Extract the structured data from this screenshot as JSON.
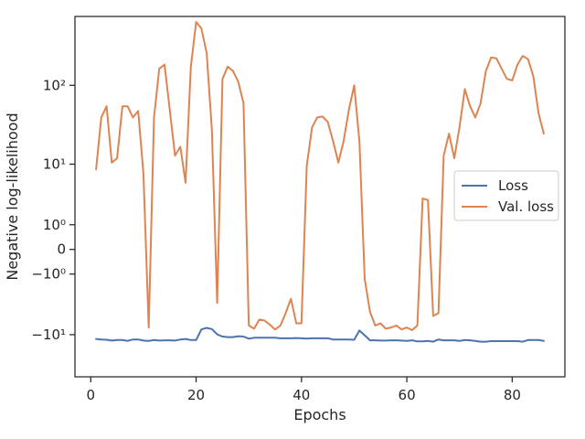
{
  "chart_data": {
    "type": "line",
    "xlabel": "Epochs",
    "ylabel": "Negative log-likelihood",
    "yscale": "symlog",
    "xlim": [
      -3,
      90
    ],
    "ylim": [
      -35,
      700
    ],
    "x_ticks": [
      0,
      20,
      40,
      60,
      80
    ],
    "x_tick_labels": [
      "0",
      "20",
      "40",
      "60",
      "80"
    ],
    "y_ticks": [
      -10,
      -1,
      0,
      1,
      10,
      100
    ],
    "y_tick_labels": [
      "−10¹",
      "−10⁰",
      "0",
      "10⁰",
      "10¹",
      "10²"
    ],
    "grid": false,
    "legend_position": "center-right",
    "x": [
      1,
      2,
      3,
      4,
      5,
      6,
      7,
      8,
      9,
      10,
      11,
      12,
      13,
      14,
      15,
      16,
      17,
      18,
      19,
      20,
      21,
      22,
      23,
      24,
      25,
      26,
      27,
      28,
      29,
      30,
      31,
      32,
      33,
      34,
      35,
      36,
      37,
      38,
      39,
      40,
      41,
      42,
      43,
      44,
      45,
      46,
      47,
      48,
      49,
      50,
      51,
      52,
      53,
      54,
      55,
      56,
      57,
      58,
      59,
      60,
      61,
      62,
      63,
      64,
      65,
      66,
      67,
      68,
      69,
      70,
      71,
      72,
      73,
      74,
      75,
      76,
      77,
      78,
      79,
      80,
      81,
      82,
      83,
      84,
      85,
      86
    ],
    "series": [
      {
        "name": "Loss",
        "color": "#4c72b0",
        "values": [
          -11.4,
          -11.6,
          -11.7,
          -12.0,
          -11.8,
          -11.8,
          -12.1,
          -11.6,
          -11.6,
          -12.0,
          -12.1,
          -11.8,
          -12.0,
          -11.9,
          -11.9,
          -12.0,
          -11.6,
          -11.4,
          -11.8,
          -11.8,
          -8.5,
          -8.1,
          -8.4,
          -9.9,
          -10.6,
          -10.8,
          -10.8,
          -10.5,
          -10.6,
          -11.3,
          -11.0,
          -11.0,
          -11.0,
          -11.0,
          -11.0,
          -11.2,
          -11.2,
          -11.2,
          -11.1,
          -11.2,
          -11.3,
          -11.2,
          -11.2,
          -11.2,
          -11.2,
          -11.6,
          -11.6,
          -11.6,
          -11.6,
          -11.7,
          -8.8,
          -10.2,
          -11.9,
          -11.9,
          -12.0,
          -12.0,
          -11.9,
          -11.9,
          -12.0,
          -12.1,
          -11.9,
          -12.3,
          -12.3,
          -12.1,
          -12.4,
          -11.6,
          -11.9,
          -11.9,
          -11.9,
          -12.1,
          -11.8,
          -11.9,
          -12.1,
          -12.4,
          -12.4,
          -12.2,
          -12.2,
          -12.2,
          -12.2,
          -12.2,
          -12.2,
          -12.4,
          -11.8,
          -11.8,
          -11.8,
          -12.1
        ]
      },
      {
        "name": "Val. loss",
        "color": "#dd8452",
        "values": [
          8.5,
          40,
          55,
          10.5,
          12,
          55,
          55,
          40,
          48,
          7.5,
          -8,
          40,
          160,
          180,
          50,
          13,
          17,
          5.5,
          170,
          600,
          500,
          250,
          28,
          -3.5,
          120,
          170,
          150,
          110,
          60,
          -7.5,
          -8.3,
          -6.2,
          -6.4,
          -7.3,
          -8.5,
          -7.5,
          -5,
          -3,
          -7,
          -7,
          9.5,
          30,
          40,
          41,
          35,
          20,
          10.5,
          20,
          50,
          100,
          20,
          -1.3,
          -4.8,
          -7.5,
          -7,
          -8.3,
          -8,
          -7.5,
          -8.5,
          -8,
          -8.7,
          -7.5,
          3.2,
          3.0,
          -5.5,
          -5.0,
          13,
          25,
          12,
          30,
          90,
          55,
          40,
          60,
          150,
          220,
          215,
          160,
          120,
          115,
          180,
          230,
          210,
          130,
          45,
          25
        ]
      }
    ]
  }
}
